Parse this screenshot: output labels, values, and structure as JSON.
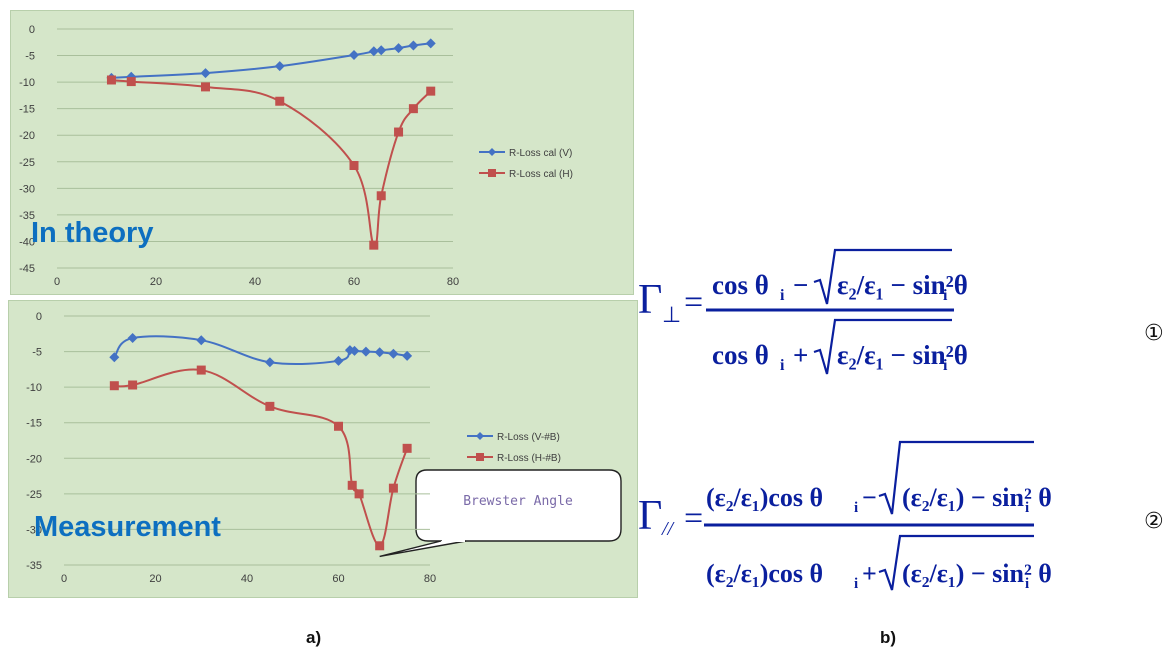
{
  "chart_data": [
    {
      "type": "line",
      "overlay_label": "In theory",
      "xlim": [
        0,
        80
      ],
      "ylim": [
        -45,
        0
      ],
      "x_ticks": [
        "0",
        "20",
        "40",
        "60",
        "80"
      ],
      "y_ticks": [
        "0",
        "-5",
        "-10",
        "-15",
        "-20",
        "-25",
        "-30",
        "-35",
        "-40",
        "-45"
      ],
      "grid": "horizontal",
      "legend_position": "right",
      "series": [
        {
          "name": "R-Loss cal (V)",
          "color": "#4472c4",
          "marker": "diamond",
          "x": [
            11,
            15,
            30,
            45,
            60,
            64,
            65.5,
            69,
            72,
            75.5
          ],
          "y": [
            -9.2,
            -9.0,
            -8.3,
            -7.0,
            -4.9,
            -4.2,
            -4.0,
            -3.6,
            -3.1,
            -2.7
          ]
        },
        {
          "name": "R-Loss cal (H)",
          "color": "#c0504d",
          "marker": "square",
          "x": [
            11,
            15,
            30,
            45,
            60,
            64,
            65.5,
            69,
            72,
            75.5
          ],
          "y": [
            -9.6,
            -9.9,
            -10.9,
            -13.6,
            -25.7,
            -40.7,
            -31.4,
            -19.4,
            -15.0,
            -11.7
          ]
        }
      ]
    },
    {
      "type": "line",
      "overlay_label": "Measurement",
      "annotation": "Brewster Angle",
      "xlim": [
        0,
        80
      ],
      "ylim": [
        -35,
        0
      ],
      "x_ticks": [
        "0",
        "20",
        "40",
        "60",
        "80"
      ],
      "y_ticks": [
        "0",
        "-5",
        "-10",
        "-15",
        "-20",
        "-25",
        "-30",
        "-35"
      ],
      "grid": "horizontal",
      "legend_position": "right",
      "series": [
        {
          "name": "R-Loss (V-#B)",
          "color": "#4472c4",
          "marker": "diamond",
          "x": [
            11,
            15,
            30,
            45,
            60,
            62.5,
            63.5,
            66,
            69,
            72,
            75
          ],
          "y": [
            -5.8,
            -3.1,
            -3.4,
            -6.5,
            -6.3,
            -4.8,
            -4.9,
            -5.0,
            -5.1,
            -5.3,
            -5.6
          ]
        },
        {
          "name": "R-Loss (H-#B)",
          "color": "#c0504d",
          "marker": "square",
          "x": [
            11,
            15,
            30,
            45,
            60,
            63,
            64.5,
            69,
            72,
            75
          ],
          "y": [
            -9.8,
            -9.7,
            -7.6,
            -12.7,
            -15.5,
            -23.8,
            -25.0,
            -32.3,
            -24.2,
            -18.6
          ]
        }
      ]
    }
  ],
  "formulas": {
    "perp": {
      "lhs": "Γ⊥",
      "num_left": "cos θi −",
      "num_root": "ε2/ε1 − sin²θi",
      "den_left": "cos θi +",
      "den_root": "ε2/ε1 − sin²θi",
      "number": "①"
    },
    "parallel": {
      "lhs": "Γ//",
      "num_left": "(ε2/ε1)cos θi −",
      "num_root": "(ε2/ε1) − sin² θi",
      "den_left": "(ε2/ε1)cos θi +",
      "den_root": "(ε2/ε1) − sin² θi",
      "number": "②"
    }
  },
  "captions": {
    "a": "a)",
    "b": "b)"
  }
}
